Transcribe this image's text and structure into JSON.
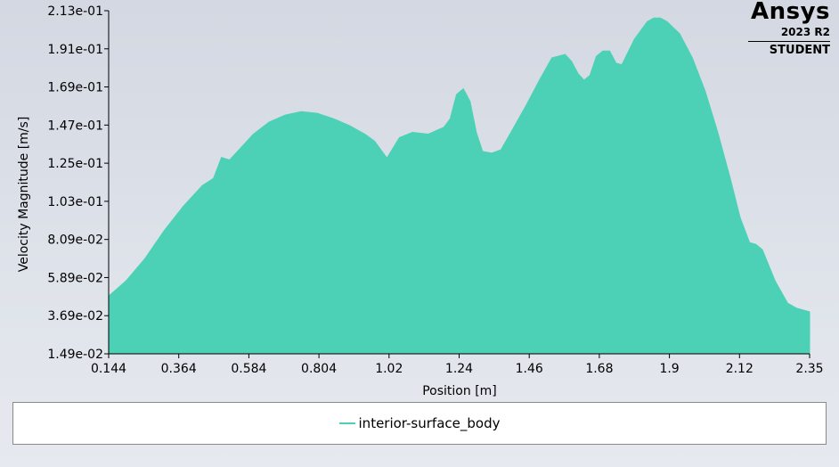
{
  "logo": {
    "name": "Ansys",
    "version": "2023 R2",
    "edition": "STUDENT"
  },
  "chart_data": {
    "type": "area",
    "title": "",
    "xlabel": "Position [m]",
    "ylabel": "Velocity Magnitude [m/s]",
    "xlim": [
      0.144,
      2.35
    ],
    "ylim": [
      0.0149,
      0.213
    ],
    "x_ticks": [
      "0.144",
      "0.364",
      "0.584",
      "0.804",
      "1.02",
      "1.24",
      "1.46",
      "1.68",
      "1.9",
      "2.12",
      "2.35"
    ],
    "y_ticks": [
      "1.49e-02",
      "3.69e-02",
      "5.89e-02",
      "8.09e-02",
      "1.03e-01",
      "1.25e-01",
      "1.47e-01",
      "1.69e-01",
      "1.91e-01",
      "2.13e-01"
    ],
    "grid": false,
    "legend_position": "bottom",
    "series": [
      {
        "name": "interior-surface_body",
        "color": "#4cd1b7",
        "upper": {
          "x": [
            0.144,
            0.2,
            0.26,
            0.32,
            0.38,
            0.44,
            0.475,
            0.5,
            0.525,
            0.56,
            0.6,
            0.65,
            0.7,
            0.75,
            0.8,
            0.85,
            0.9,
            0.95,
            0.98,
            1.02,
            1.06,
            1.1,
            1.15,
            1.2,
            1.22,
            1.24,
            1.26,
            1.28,
            1.3,
            1.32,
            1.35,
            1.38,
            1.42,
            1.46,
            1.5,
            1.54,
            1.58,
            1.6,
            1.62,
            1.64,
            1.66,
            1.68,
            1.7,
            1.72,
            1.74,
            1.76,
            1.8,
            1.84,
            1.86,
            1.88,
            1.9,
            1.94,
            1.98,
            2.02,
            2.06,
            2.1,
            2.13,
            2.16,
            2.18,
            2.2,
            2.24,
            2.28,
            2.31,
            2.35
          ],
          "y": [
            0.0479,
            0.0569,
            0.0699,
            0.0859,
            0.0999,
            0.1119,
            0.116,
            0.128,
            0.1265,
            0.1335,
            0.1415,
            0.1485,
            0.1525,
            0.1545,
            0.1535,
            0.1505,
            0.1465,
            0.1415,
            0.1375,
            0.1275,
            0.1395,
            0.1425,
            0.1415,
            0.1455,
            0.1505,
            0.1645,
            0.1675,
            0.1605,
            0.1425,
            0.1315,
            0.1305,
            0.1325,
            0.1455,
            0.1585,
            0.1725,
            0.1855,
            0.1875,
            0.1835,
            0.1765,
            0.1725,
            0.1755,
            0.1865,
            0.1895,
            0.1895,
            0.1825,
            0.1815,
            0.1965,
            0.2065,
            0.2085,
            0.2085,
            0.2065,
            0.1995,
            0.1855,
            0.1665,
            0.1425,
            0.1155,
            0.0935,
            0.0789,
            0.0779,
            0.0749,
            0.0569,
            0.0439,
            0.0409,
            0.0389
          ]
        },
        "lower": {
          "x": [
            0.144,
            0.2,
            0.3,
            0.4,
            0.6,
            0.8,
            1.0,
            1.2,
            1.4,
            1.6,
            1.8,
            2.0,
            2.1,
            2.2,
            2.3,
            2.35
          ],
          "y": [
            0.0149,
            0.0149,
            0.0149,
            0.0149,
            0.0149,
            0.0149,
            0.0149,
            0.0149,
            0.0149,
            0.0149,
            0.0149,
            0.0149,
            0.0149,
            0.0149,
            0.0149,
            0.0149
          ]
        }
      }
    ]
  }
}
